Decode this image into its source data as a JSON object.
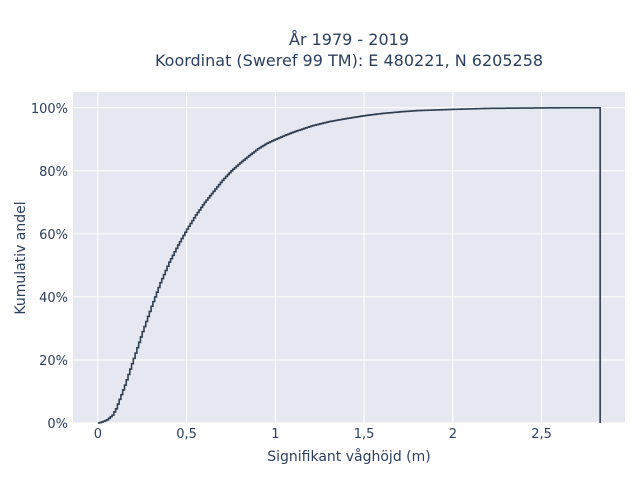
{
  "chart_data": {
    "type": "line",
    "title": [
      "År 1979 - 2019",
      "Koordinat (Sweref 99 TM): E 480221, N 6205258"
    ],
    "xlabel": "Signifikant våghöjd (m)",
    "ylabel": "Kumulativ andel",
    "xlim": [
      -0.14,
      2.97
    ],
    "ylim": [
      0,
      1.05
    ],
    "xticks": [
      0,
      0.5,
      1,
      1.5,
      2,
      2.5
    ],
    "xtick_labels": [
      "0",
      "0,5",
      "1",
      "1,5",
      "2",
      "2,5"
    ],
    "yticks": [
      0,
      0.2,
      0.4,
      0.6,
      0.8,
      1.0
    ],
    "ytick_labels": [
      "0%",
      "20%",
      "40%",
      "60%",
      "80%",
      "100%"
    ],
    "grid": true,
    "line_shape": "step",
    "series": [
      {
        "name": "",
        "color": "#2f3e50",
        "x": [
          0,
          0.02,
          0.05,
          0.08,
          0.1,
          0.15,
          0.2,
          0.25,
          0.3,
          0.35,
          0.4,
          0.45,
          0.5,
          0.55,
          0.6,
          0.65,
          0.7,
          0.75,
          0.8,
          0.85,
          0.9,
          0.95,
          1.0,
          1.05,
          1.1,
          1.2,
          1.3,
          1.4,
          1.5,
          1.6,
          1.7,
          1.8,
          2.0,
          2.2,
          2.4,
          2.6,
          2.8,
          2.83,
          2.83
        ],
        "y": [
          0,
          0.003,
          0.01,
          0.025,
          0.045,
          0.12,
          0.205,
          0.29,
          0.37,
          0.445,
          0.51,
          0.565,
          0.615,
          0.66,
          0.7,
          0.735,
          0.77,
          0.8,
          0.825,
          0.848,
          0.87,
          0.887,
          0.9,
          0.912,
          0.923,
          0.942,
          0.956,
          0.966,
          0.975,
          0.982,
          0.987,
          0.991,
          0.995,
          0.998,
          0.999,
          1.0,
          1.0,
          1.0,
          0
        ]
      }
    ]
  }
}
